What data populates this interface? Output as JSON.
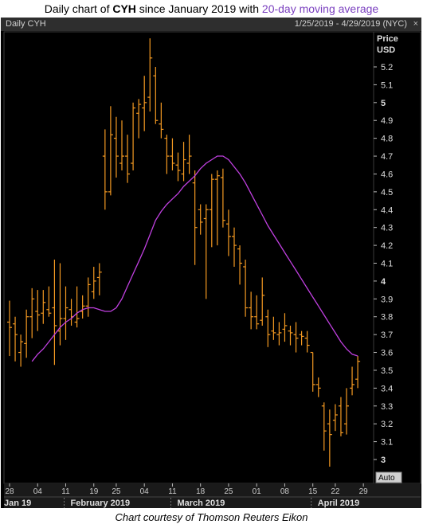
{
  "title": {
    "prefix": "Daily chart of ",
    "ticker": "CYH",
    "middle": " since January 2019 with ",
    "ma_text": "20-day moving average"
  },
  "header": {
    "left": "Daily CYH",
    "right": "1/25/2019 - 4/29/2019 (NYC)",
    "close_glyph": "×"
  },
  "caption": "Chart courtesy of Thomson Reuters Eikon",
  "colors": {
    "bars": "#f59a22",
    "ma": "#c040e0",
    "background": "#000000",
    "text": "#cccccc"
  },
  "chart_data": {
    "type": "line",
    "subtype": "ohlc-bars with moving average",
    "price_label": "Price",
    "currency_label": "USD",
    "auto_label": "Auto",
    "ylim": [
      2.92,
      5.36
    ],
    "y_ticks": [
      "5.2",
      "5.1",
      "5",
      "4.9",
      "4.8",
      "4.7",
      "4.6",
      "4.5",
      "4.4",
      "4.3",
      "4.2",
      "4.1",
      "4",
      "3.9",
      "3.8",
      "3.7",
      "3.6",
      "3.5",
      "3.4",
      "3.3",
      "3.2",
      "3.1",
      "3"
    ],
    "y_bold": [
      "5",
      "4",
      "3"
    ],
    "x_day_labels": [
      {
        "label": "28",
        "i": 0
      },
      {
        "label": "04",
        "i": 5
      },
      {
        "label": "11",
        "i": 10
      },
      {
        "label": "19",
        "i": 15
      },
      {
        "label": "25",
        "i": 19
      },
      {
        "label": "04",
        "i": 24
      },
      {
        "label": "11",
        "i": 29
      },
      {
        "label": "18",
        "i": 34
      },
      {
        "label": "25",
        "i": 39
      },
      {
        "label": "01",
        "i": 44
      },
      {
        "label": "08",
        "i": 49
      },
      {
        "label": "15",
        "i": 54
      },
      {
        "label": "22",
        "i": 58
      },
      {
        "label": "29",
        "i": 63
      }
    ],
    "x_month_labels": [
      {
        "label": "Jan 19",
        "i": 0
      },
      {
        "label": "February 2019",
        "i": 10
      },
      {
        "label": "March 2019",
        "i": 29
      },
      {
        "label": "April 2019",
        "i": 54
      }
    ],
    "ohlc": [
      {
        "high": 3.89,
        "low": 3.58,
        "open": 3.77,
        "close": 3.74
      },
      {
        "high": 3.8,
        "low": 3.55,
        "open": 3.76,
        "close": 3.7
      },
      {
        "high": 3.7,
        "low": 3.52,
        "open": 3.6,
        "close": 3.66
      },
      {
        "high": 3.84,
        "low": 3.57,
        "open": 3.65,
        "close": 3.8
      },
      {
        "high": 3.96,
        "low": 3.68,
        "open": 3.8,
        "close": 3.9
      },
      {
        "high": 3.95,
        "low": 3.72,
        "open": 3.83,
        "close": 3.81
      },
      {
        "high": 3.95,
        "low": 3.76,
        "open": 3.82,
        "close": 3.88
      },
      {
        "high": 3.97,
        "low": 3.8,
        "open": 3.84,
        "close": 3.82
      },
      {
        "high": 4.12,
        "low": 3.53,
        "open": 3.85,
        "close": 3.75
      },
      {
        "high": 4.1,
        "low": 3.64,
        "open": 3.72,
        "close": 3.79
      },
      {
        "high": 3.97,
        "low": 3.67,
        "open": 3.79,
        "close": 3.85
      },
      {
        "high": 3.9,
        "low": 3.75,
        "open": 3.84,
        "close": 3.8
      },
      {
        "high": 3.97,
        "low": 3.74,
        "open": 3.77,
        "close": 3.79
      },
      {
        "high": 3.92,
        "low": 3.79,
        "open": 3.83,
        "close": 3.86
      },
      {
        "high": 4.02,
        "low": 3.8,
        "open": 3.86,
        "close": 3.98
      },
      {
        "high": 4.08,
        "low": 3.9,
        "open": 3.94,
        "close": 4.0
      },
      {
        "high": 4.1,
        "low": 3.92,
        "open": 4.02,
        "close": 4.05
      },
      {
        "high": 4.85,
        "low": 4.4,
        "open": 4.7,
        "close": 4.5
      },
      {
        "high": 4.98,
        "low": 4.48,
        "open": 4.5,
        "close": 4.82
      },
      {
        "high": 4.92,
        "low": 4.58,
        "open": 4.8,
        "close": 4.7
      },
      {
        "high": 4.9,
        "low": 4.62,
        "open": 4.66,
        "close": 4.7
      },
      {
        "high": 4.82,
        "low": 4.55,
        "open": 4.7,
        "close": 4.6
      },
      {
        "high": 5.0,
        "low": 4.62,
        "open": 4.66,
        "close": 4.97
      },
      {
        "high": 5.02,
        "low": 4.8,
        "open": 4.94,
        "close": 4.99
      },
      {
        "high": 5.15,
        "low": 4.84,
        "open": 4.97,
        "close": 5.0
      },
      {
        "high": 5.36,
        "low": 4.95,
        "open": 5.03,
        "close": 5.25
      },
      {
        "high": 5.2,
        "low": 4.88,
        "open": 5.15,
        "close": 4.9
      },
      {
        "high": 5.0,
        "low": 4.8,
        "open": 4.88,
        "close": 4.85
      },
      {
        "high": 4.82,
        "low": 4.6,
        "open": 4.8,
        "close": 4.7
      },
      {
        "high": 4.8,
        "low": 4.62,
        "open": 4.7,
        "close": 4.66
      },
      {
        "high": 4.72,
        "low": 4.56,
        "open": 4.65,
        "close": 4.62
      },
      {
        "high": 4.78,
        "low": 4.56,
        "open": 4.6,
        "close": 4.68
      },
      {
        "high": 4.82,
        "low": 4.6,
        "open": 4.66,
        "close": 4.7
      },
      {
        "high": 4.62,
        "low": 4.09,
        "open": 4.55,
        "close": 4.3
      },
      {
        "high": 4.43,
        "low": 4.26,
        "open": 4.4,
        "close": 4.33
      },
      {
        "high": 4.43,
        "low": 3.9,
        "open": 4.35,
        "close": 4.4
      },
      {
        "high": 4.6,
        "low": 4.19,
        "open": 4.4,
        "close": 4.57
      },
      {
        "high": 4.62,
        "low": 4.2,
        "open": 4.57,
        "close": 4.59
      },
      {
        "high": 4.63,
        "low": 4.3,
        "open": 4.58,
        "close": 4.34
      },
      {
        "high": 4.4,
        "low": 4.14,
        "open": 4.32,
        "close": 4.25
      },
      {
        "high": 4.3,
        "low": 4.08,
        "open": 4.25,
        "close": 4.2
      },
      {
        "high": 4.2,
        "low": 3.98,
        "open": 4.18,
        "close": 4.1
      },
      {
        "high": 4.12,
        "low": 3.8,
        "open": 4.08,
        "close": 3.85
      },
      {
        "high": 3.94,
        "low": 3.73,
        "open": 3.85,
        "close": 3.8
      },
      {
        "high": 3.92,
        "low": 3.73,
        "open": 3.8,
        "close": 3.76
      },
      {
        "high": 4.02,
        "low": 3.75,
        "open": 3.78,
        "close": 3.92
      },
      {
        "high": 3.84,
        "low": 3.63,
        "open": 3.8,
        "close": 3.7
      },
      {
        "high": 3.8,
        "low": 3.67,
        "open": 3.72,
        "close": 3.71
      },
      {
        "high": 3.77,
        "low": 3.64,
        "open": 3.7,
        "close": 3.71
      },
      {
        "high": 3.82,
        "low": 3.66,
        "open": 3.73,
        "close": 3.75
      },
      {
        "high": 3.75,
        "low": 3.64,
        "open": 3.72,
        "close": 3.71
      },
      {
        "high": 3.77,
        "low": 3.6,
        "open": 3.7,
        "close": 3.68
      },
      {
        "high": 3.72,
        "low": 3.64,
        "open": 3.7,
        "close": 3.69
      },
      {
        "high": 3.72,
        "low": 3.6,
        "open": 3.68,
        "close": 3.64
      },
      {
        "high": 3.6,
        "low": 3.38,
        "open": 3.6,
        "close": 3.42
      },
      {
        "high": 3.46,
        "low": 3.35,
        "open": 3.42,
        "close": 3.4
      },
      {
        "high": 3.32,
        "low": 3.05,
        "open": 3.3,
        "close": 3.16
      },
      {
        "high": 3.28,
        "low": 2.96,
        "open": 3.2,
        "close": 3.14
      },
      {
        "high": 3.31,
        "low": 3.16,
        "open": 3.22,
        "close": 3.25
      },
      {
        "high": 3.35,
        "low": 3.13,
        "open": 3.3,
        "close": 3.15
      },
      {
        "high": 3.4,
        "low": 3.14,
        "open": 3.2,
        "close": 3.3
      },
      {
        "high": 3.52,
        "low": 3.36,
        "open": 3.4,
        "close": 3.42
      },
      {
        "high": 3.58,
        "low": 3.4,
        "open": 3.45,
        "close": 3.55
      }
    ],
    "ma20": [
      3.55,
      3.59,
      3.62,
      3.66,
      3.7,
      3.74,
      3.77,
      3.79,
      3.82,
      3.84,
      3.85,
      3.85,
      3.84,
      3.83,
      3.83,
      3.85,
      3.9,
      3.97,
      4.04,
      4.11,
      4.18,
      4.26,
      4.34,
      4.39,
      4.43,
      4.46,
      4.49,
      4.53,
      4.56,
      4.59,
      4.63,
      4.66,
      4.68,
      4.7,
      4.7,
      4.68,
      4.64,
      4.6,
      4.55,
      4.49,
      4.43,
      4.37,
      4.31,
      4.26,
      4.21,
      4.16,
      4.11,
      4.06,
      4.01,
      3.96,
      3.91,
      3.86,
      3.81,
      3.76,
      3.71,
      3.66,
      3.62,
      3.59,
      3.58
    ]
  }
}
